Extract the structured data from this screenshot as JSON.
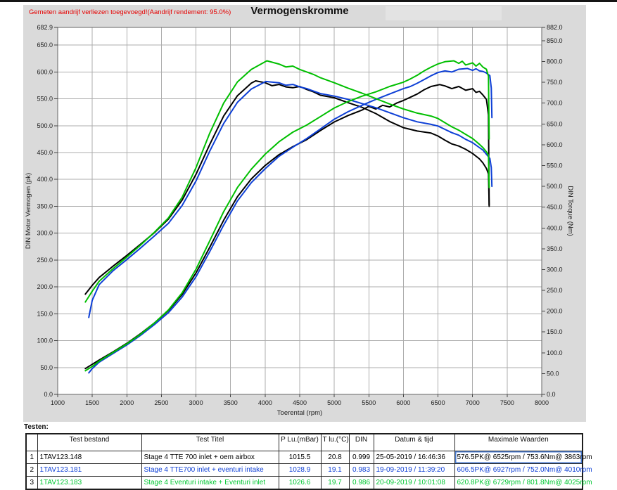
{
  "chart": {
    "annotation": "Gemeten aandrijf verliezen toegevoegd!(Aandrijf rendement: 95.0%)",
    "annotation_color": "#e60000",
    "panel_bg": "#dadada",
    "plot_bg": "#ffffff",
    "grid_color": "#acacac",
    "border_color": "#666666"
  },
  "chart_data": {
    "type": "line",
    "title": "Vermogenskromme",
    "xlabel": "Toerental (rpm)",
    "ylabel_left": "DIN Motor Vermogen (pk)",
    "ylabel_right": "DIN Torque (Nm)",
    "xlim": [
      1000,
      8000
    ],
    "ylim_left": [
      0,
      682.9
    ],
    "ylim_right": [
      0,
      882.0
    ],
    "x_ticks": [
      1000,
      1500,
      2000,
      2500,
      3000,
      3500,
      4000,
      4500,
      5000,
      5500,
      6000,
      6500,
      7000,
      7500,
      8000
    ],
    "y_left_ticks": [
      0,
      50,
      100,
      150,
      200,
      250,
      300,
      350,
      400,
      450,
      500,
      550,
      600,
      650,
      682.9
    ],
    "y_right_ticks": [
      0,
      50,
      100,
      150,
      200,
      250,
      300,
      350,
      400,
      450,
      500,
      550,
      600,
      650,
      700,
      750,
      800,
      850,
      882.0
    ],
    "grid": true,
    "legend_position": "none",
    "series": [
      {
        "name": "Stage 4 TTE 700 inlet + oem airbox - Vermogen (pk)",
        "axis": "left",
        "color": "#000000",
        "points": [
          [
            1400,
            48
          ],
          [
            1500,
            56
          ],
          [
            1600,
            64
          ],
          [
            1800,
            79
          ],
          [
            2000,
            95
          ],
          [
            2200,
            113
          ],
          [
            2400,
            133
          ],
          [
            2600,
            156
          ],
          [
            2800,
            186
          ],
          [
            3000,
            226
          ],
          [
            3200,
            274
          ],
          [
            3400,
            324
          ],
          [
            3600,
            368
          ],
          [
            3800,
            401
          ],
          [
            4000,
            426
          ],
          [
            4200,
            446
          ],
          [
            4400,
            461
          ],
          [
            4600,
            474
          ],
          [
            4800,
            491
          ],
          [
            5000,
            507
          ],
          [
            5200,
            519
          ],
          [
            5400,
            529
          ],
          [
            5500,
            536
          ],
          [
            5600,
            531
          ],
          [
            5700,
            538
          ],
          [
            5800,
            535
          ],
          [
            5900,
            542
          ],
          [
            6000,
            547
          ],
          [
            6100,
            553
          ],
          [
            6200,
            559
          ],
          [
            6300,
            567
          ],
          [
            6400,
            573
          ],
          [
            6525,
            576.5
          ],
          [
            6600,
            574
          ],
          [
            6700,
            569
          ],
          [
            6800,
            573
          ],
          [
            6900,
            566
          ],
          [
            7000,
            569
          ],
          [
            7050,
            562
          ],
          [
            7100,
            564
          ],
          [
            7150,
            557
          ],
          [
            7200,
            549
          ],
          [
            7230,
            520
          ],
          [
            7240,
            350
          ]
        ]
      },
      {
        "name": "Stage 4 TTE 700 inlet + oem airbox - Torque (Nm)",
        "axis": "right",
        "color": "#000000",
        "points": [
          [
            1400,
            241
          ],
          [
            1500,
            262
          ],
          [
            1600,
            281
          ],
          [
            1800,
            308
          ],
          [
            2000,
            334
          ],
          [
            2200,
            361
          ],
          [
            2400,
            389
          ],
          [
            2600,
            421
          ],
          [
            2800,
            467
          ],
          [
            3000,
            529
          ],
          [
            3200,
            601
          ],
          [
            3400,
            669
          ],
          [
            3600,
            718
          ],
          [
            3800,
            748
          ],
          [
            3863,
            753.6
          ],
          [
            4000,
            749
          ],
          [
            4100,
            742
          ],
          [
            4200,
            745
          ],
          [
            4300,
            739
          ],
          [
            4400,
            737
          ],
          [
            4500,
            740
          ],
          [
            4600,
            733
          ],
          [
            4700,
            727
          ],
          [
            4800,
            719
          ],
          [
            5000,
            713
          ],
          [
            5200,
            701
          ],
          [
            5400,
            690
          ],
          [
            5600,
            675
          ],
          [
            5800,
            656
          ],
          [
            6000,
            641
          ],
          [
            6200,
            633
          ],
          [
            6400,
            628
          ],
          [
            6500,
            621
          ],
          [
            6600,
            611
          ],
          [
            6700,
            602
          ],
          [
            6800,
            597
          ],
          [
            6900,
            589
          ],
          [
            7000,
            579
          ],
          [
            7100,
            566
          ],
          [
            7150,
            556
          ],
          [
            7200,
            543
          ],
          [
            7230,
            530
          ],
          [
            7240,
            455
          ]
        ]
      },
      {
        "name": "Stage 4 TTE700 inlet + eventuri intake - Vermogen (pk)",
        "axis": "left",
        "color": "#0d3fd6",
        "points": [
          [
            1450,
            40
          ],
          [
            1500,
            48
          ],
          [
            1600,
            60
          ],
          [
            1800,
            76
          ],
          [
            2000,
            92
          ],
          [
            2200,
            110
          ],
          [
            2400,
            130
          ],
          [
            2600,
            152
          ],
          [
            2800,
            181
          ],
          [
            3000,
            219
          ],
          [
            3200,
            266
          ],
          [
            3400,
            315
          ],
          [
            3600,
            360
          ],
          [
            3800,
            394
          ],
          [
            4000,
            420
          ],
          [
            4200,
            443
          ],
          [
            4400,
            460
          ],
          [
            4600,
            476
          ],
          [
            4800,
            494
          ],
          [
            5000,
            512
          ],
          [
            5200,
            526
          ],
          [
            5400,
            538
          ],
          [
            5600,
            549
          ],
          [
            5800,
            559
          ],
          [
            6000,
            569
          ],
          [
            6100,
            573
          ],
          [
            6200,
            579
          ],
          [
            6300,
            586
          ],
          [
            6400,
            593
          ],
          [
            6500,
            599
          ],
          [
            6600,
            602
          ],
          [
            6700,
            600
          ],
          [
            6800,
            605
          ],
          [
            6927,
            606.5
          ],
          [
            7000,
            603
          ],
          [
            7050,
            606
          ],
          [
            7100,
            602
          ],
          [
            7150,
            601
          ],
          [
            7200,
            598
          ],
          [
            7250,
            593
          ],
          [
            7270,
            570
          ],
          [
            7280,
            515
          ]
        ]
      },
      {
        "name": "Stage 4 TTE700 inlet + eventuri intake - Torque (Nm)",
        "axis": "right",
        "color": "#0d3fd6",
        "points": [
          [
            1450,
            185
          ],
          [
            1500,
            226
          ],
          [
            1600,
            264
          ],
          [
            1800,
            297
          ],
          [
            2000,
            324
          ],
          [
            2200,
            352
          ],
          [
            2400,
            381
          ],
          [
            2600,
            411
          ],
          [
            2800,
            454
          ],
          [
            3000,
            513
          ],
          [
            3200,
            585
          ],
          [
            3400,
            651
          ],
          [
            3600,
            702
          ],
          [
            3800,
            734
          ],
          [
            4010,
            752
          ],
          [
            4200,
            749
          ],
          [
            4300,
            743
          ],
          [
            4400,
            745
          ],
          [
            4500,
            739
          ],
          [
            4600,
            735
          ],
          [
            4700,
            729
          ],
          [
            4800,
            723
          ],
          [
            5000,
            717
          ],
          [
            5200,
            709
          ],
          [
            5400,
            699
          ],
          [
            5600,
            689
          ],
          [
            5800,
            677
          ],
          [
            6000,
            665
          ],
          [
            6200,
            655
          ],
          [
            6400,
            649
          ],
          [
            6500,
            645
          ],
          [
            6600,
            637
          ],
          [
            6700,
            629
          ],
          [
            6800,
            623
          ],
          [
            6900,
            613
          ],
          [
            7000,
            605
          ],
          [
            7100,
            593
          ],
          [
            7150,
            587
          ],
          [
            7200,
            577
          ],
          [
            7250,
            567
          ],
          [
            7270,
            545
          ],
          [
            7280,
            500
          ]
        ]
      },
      {
        "name": "Stage 4 Eventuri intake + Eventuri inlet - Vermogen (pk)",
        "axis": "left",
        "color": "#00bf00",
        "points": [
          [
            1400,
            44
          ],
          [
            1500,
            52
          ],
          [
            1600,
            62
          ],
          [
            1800,
            78
          ],
          [
            2000,
            94
          ],
          [
            2200,
            112
          ],
          [
            2400,
            133
          ],
          [
            2600,
            157
          ],
          [
            2800,
            189
          ],
          [
            3000,
            233
          ],
          [
            3200,
            286
          ],
          [
            3400,
            340
          ],
          [
            3600,
            385
          ],
          [
            3800,
            419
          ],
          [
            4000,
            447
          ],
          [
            4200,
            470
          ],
          [
            4400,
            488
          ],
          [
            4600,
            501
          ],
          [
            4800,
            517
          ],
          [
            5000,
            533
          ],
          [
            5200,
            545
          ],
          [
            5400,
            555
          ],
          [
            5600,
            563
          ],
          [
            5800,
            573
          ],
          [
            6000,
            581
          ],
          [
            6100,
            587
          ],
          [
            6200,
            594
          ],
          [
            6300,
            602
          ],
          [
            6400,
            609
          ],
          [
            6500,
            615
          ],
          [
            6600,
            619
          ],
          [
            6729,
            620.8
          ],
          [
            6800,
            616
          ],
          [
            6850,
            620
          ],
          [
            6900,
            613
          ],
          [
            7000,
            617
          ],
          [
            7050,
            611
          ],
          [
            7100,
            616
          ],
          [
            7150,
            609
          ],
          [
            7200,
            605
          ],
          [
            7230,
            592
          ],
          [
            7240,
            475
          ]
        ]
      },
      {
        "name": "Stage 4 Eventuri intake + Eventuri inlet - Torque (Nm)",
        "axis": "right",
        "color": "#00bf00",
        "points": [
          [
            1400,
            222
          ],
          [
            1500,
            248
          ],
          [
            1600,
            272
          ],
          [
            1800,
            302
          ],
          [
            2000,
            330
          ],
          [
            2200,
            359
          ],
          [
            2400,
            390
          ],
          [
            2600,
            424
          ],
          [
            2800,
            474
          ],
          [
            3000,
            545
          ],
          [
            3200,
            628
          ],
          [
            3400,
            700
          ],
          [
            3600,
            751
          ],
          [
            3800,
            781
          ],
          [
            4025,
            801.8
          ],
          [
            4200,
            794
          ],
          [
            4300,
            787
          ],
          [
            4400,
            789
          ],
          [
            4500,
            781
          ],
          [
            4600,
            775
          ],
          [
            4700,
            769
          ],
          [
            4800,
            761
          ],
          [
            5000,
            749
          ],
          [
            5200,
            736
          ],
          [
            5400,
            724
          ],
          [
            5600,
            711
          ],
          [
            5800,
            698
          ],
          [
            6000,
            686
          ],
          [
            6200,
            676
          ],
          [
            6400,
            669
          ],
          [
            6500,
            663
          ],
          [
            6600,
            653
          ],
          [
            6700,
            643
          ],
          [
            6800,
            635
          ],
          [
            6900,
            625
          ],
          [
            7000,
            615
          ],
          [
            7100,
            601
          ],
          [
            7150,
            593
          ],
          [
            7200,
            583
          ],
          [
            7230,
            575
          ],
          [
            7240,
            497
          ]
        ]
      }
    ]
  },
  "table": {
    "section_label": "Testen:",
    "headers": [
      "",
      "Test bestand",
      "Test Titel",
      "P Lu.(mBar)",
      "T lu.(°C)",
      "DIN",
      "Datum & tijd",
      "Maximale Waarden"
    ],
    "rows": [
      {
        "num": "1",
        "color": "#000000",
        "cells": [
          "1TAV123.148",
          "Stage 4 TTE 700  inlet + oem airbox",
          "1015.5",
          "20.8",
          "0.999",
          "25-05-2019 / 16:46:36",
          "576.5PK@ 6525rpm / 753.6Nm@ 3863rpm"
        ]
      },
      {
        "num": "2",
        "color": "#0d3fd6",
        "cells": [
          "1TAV123.181",
          "Stage 4 TTE700 inlet + eventuri intake",
          "1028.9",
          "19.1",
          "0.983",
          "19-09-2019 / 11:39:20",
          "606.5PK@ 6927rpm / 752.0Nm@ 4010rpm"
        ]
      },
      {
        "num": "3",
        "color": "#00c732",
        "cells": [
          "1TAV123.183",
          "Stage 4 Eventuri intake + Eventuri inlet",
          "1026.6",
          "19.7",
          "0.986",
          "20-09-2019 / 10:01:08",
          "620.8PK@ 6729rpm / 801.8Nm@ 4025rpm"
        ]
      }
    ],
    "selected_cell": {
      "row": 0,
      "col": 7
    }
  }
}
